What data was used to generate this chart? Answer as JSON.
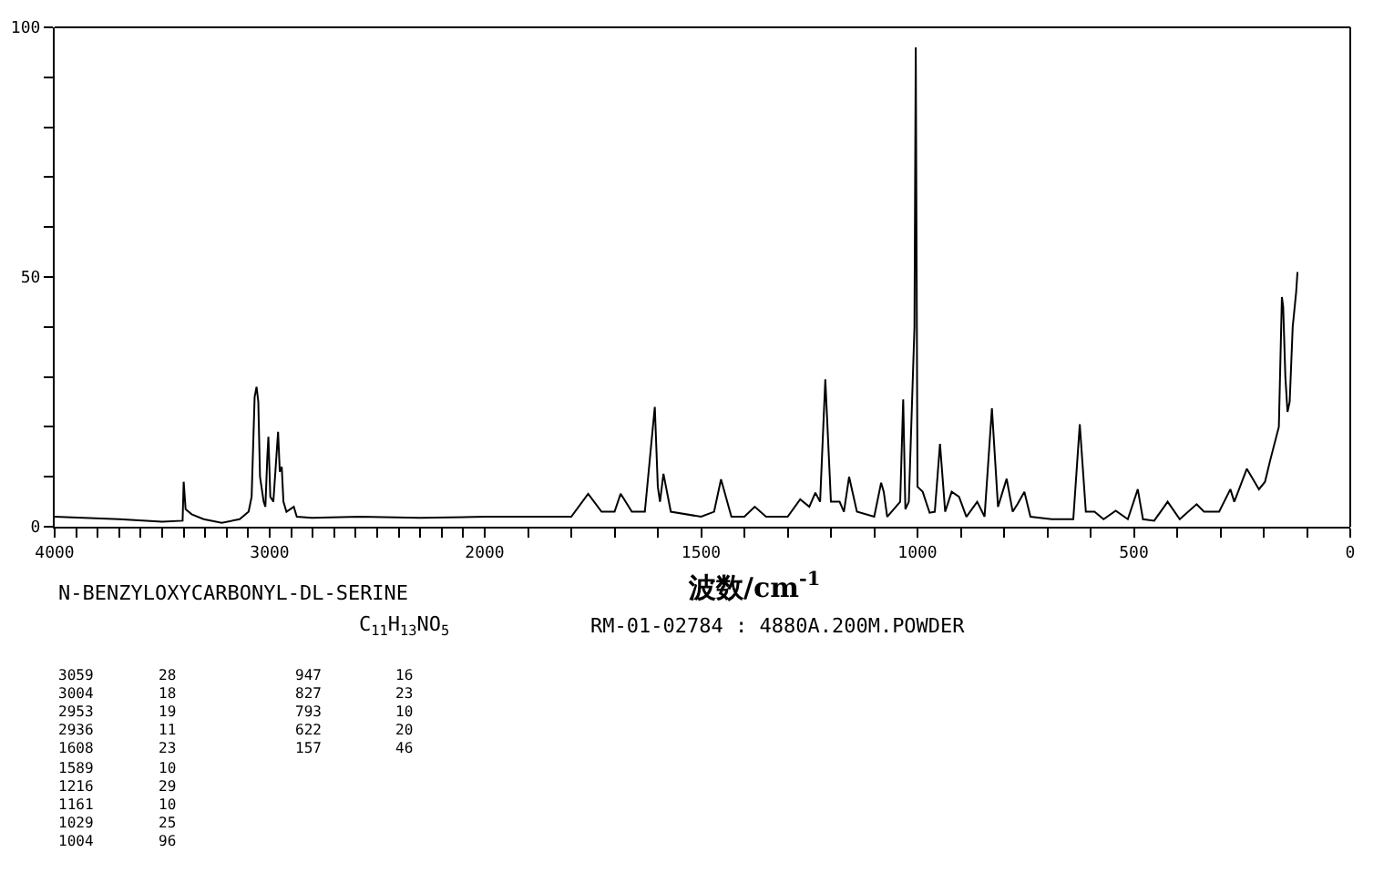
{
  "chart_data": [
    {
      "type": "line",
      "x": [
        4000,
        3700,
        3500,
        3405,
        3400,
        3391,
        3363,
        3307,
        3223,
        3140,
        3098,
        3084,
        3070,
        3061,
        3053,
        3045,
        3028,
        3020,
        3011,
        3006,
        2997,
        2983,
        2972,
        2961,
        2953,
        2944,
        2936,
        2922,
        2888,
        2874,
        2804,
        2581,
        2302,
        2000
      ],
      "series": [
        {
          "color": "#000000",
          "values": [
            2,
            1.5,
            1,
            1.2,
            9,
            3.5,
            2.5,
            1.5,
            0.8,
            1.5,
            3,
            6,
            26,
            28,
            25,
            10,
            5,
            4,
            14,
            18,
            6,
            5,
            12,
            19,
            11,
            12,
            5,
            3,
            4,
            2,
            1.8,
            2,
            1.8,
            2
          ]
        }
      ],
      "xlim": [
        4000,
        2000
      ],
      "xticks": [
        4000,
        {
          "value": 3900,
          "label": null
        },
        {
          "value": 3800,
          "label": null
        },
        {
          "value": 3700,
          "label": null
        },
        {
          "value": 3600,
          "label": null
        },
        {
          "value": 3500,
          "label": null
        },
        {
          "value": 3400,
          "label": null
        },
        {
          "value": 3300,
          "label": null
        },
        {
          "value": 3200,
          "label": null
        },
        {
          "value": 3100,
          "label": null
        },
        3000,
        {
          "value": 2900,
          "label": null
        },
        {
          "value": 2800,
          "label": null
        },
        {
          "value": 2700,
          "label": null
        },
        {
          "value": 2600,
          "label": null
        },
        {
          "value": 2500,
          "label": null
        },
        {
          "value": 2400,
          "label": null
        },
        {
          "value": 2300,
          "label": null
        },
        {
          "value": 2200,
          "label": null
        },
        {
          "value": 2100,
          "label": null
        }
      ],
      "ylim": [
        0,
        100
      ],
      "yticks": [
        0,
        {
          "value": 10,
          "label": null
        },
        {
          "value": 20,
          "label": null
        },
        {
          "value": 30,
          "label": null
        },
        {
          "value": 40,
          "label": null
        },
        50,
        {
          "value": 60,
          "label": null
        },
        {
          "value": 70,
          "label": null
        },
        {
          "value": 80,
          "label": null
        },
        {
          "value": 90,
          "label": null
        },
        100
      ],
      "marker": "none",
      "line_style": "solid",
      "annotations": [
        "N-BENZYLOXYCARBONYL-DL-SERINE",
        "C$_{11}$H$_{13}$NO$_{5}$",
        "RM-01-02784 : 4880A.200M.POWDER",
        "3059",
        "28",
        "3004",
        "18",
        "2953",
        "19",
        "2936",
        "11",
        "1608",
        "23",
        "1589",
        "10",
        "1216",
        "29",
        "1161",
        "10",
        "1029",
        "25",
        "1004",
        "96",
        "947",
        "16",
        "827",
        "23",
        "793",
        "10",
        "622",
        "20",
        "157",
        "46"
      ]
    },
    {
      "type": "line",
      "xlabel": "波数/cm$^{-1}$",
      "x": [
        2000,
        1900,
        1800,
        1761,
        1730,
        1700,
        1686,
        1660,
        1630,
        1607,
        1600,
        1595,
        1587,
        1570,
        1500,
        1470,
        1454,
        1430,
        1400,
        1376,
        1350,
        1300,
        1271,
        1250,
        1236,
        1225,
        1213,
        1200,
        1180,
        1170,
        1158,
        1140,
        1100,
        1084,
        1078,
        1070,
        1040,
        1033,
        1028,
        1020,
        1007,
        1004,
        1000,
        988,
        972,
        960,
        948,
        936,
        921,
        904,
        887,
        862,
        845,
        828,
        814,
        794,
        780,
        769,
        753,
        739,
        690,
        640,
        625,
        611,
        591,
        570,
        542,
        514,
        491,
        479,
        453,
        422,
        394,
        355,
        338,
        303,
        277,
        268,
        239,
        228,
        211,
        197,
        185,
        165,
        158,
        155,
        150,
        145,
        140,
        133,
        125,
        122
      ],
      "series": [
        {
          "color": "#000000",
          "values": [
            2,
            2,
            2,
            6.6,
            3,
            3,
            6.6,
            3,
            3,
            24,
            8,
            5,
            10.6,
            3,
            2,
            3,
            9.5,
            2,
            2,
            4,
            2,
            2,
            5.5,
            4,
            6.8,
            5,
            29.5,
            5,
            5,
            3,
            10,
            3,
            2,
            8.8,
            7,
            2,
            5,
            25.5,
            3.5,
            5,
            40,
            96,
            8,
            7,
            2.8,
            3,
            16.6,
            3,
            7,
            6,
            2,
            5,
            2,
            23.7,
            4,
            9.6,
            3,
            4.5,
            7,
            2,
            1.5,
            1.5,
            20.5,
            3,
            3,
            1.5,
            3.2,
            1.5,
            7.5,
            1.5,
            1.2,
            5,
            1.5,
            4.5,
            3,
            3,
            7.5,
            5,
            11.6,
            10,
            7.5,
            9,
            13.3,
            20,
            46,
            44,
            30,
            23,
            25,
            40,
            47,
            51
          ]
        }
      ],
      "xlim": [
        2000,
        0
      ],
      "xticks": [
        2000,
        {
          "value": 1900,
          "label": null
        },
        {
          "value": 1800,
          "label": null
        },
        {
          "value": 1700,
          "label": null
        },
        {
          "value": 1600,
          "label": null
        },
        1500,
        {
          "value": 1400,
          "label": null
        },
        {
          "value": 1300,
          "label": null
        },
        {
          "value": 1200,
          "label": null
        },
        {
          "value": 1100,
          "label": null
        },
        1000,
        {
          "value": 900,
          "label": null
        },
        {
          "value": 800,
          "label": null
        },
        {
          "value": 700,
          "label": null
        },
        {
          "value": 600,
          "label": null
        },
        500,
        {
          "value": 400,
          "label": null
        },
        {
          "value": 300,
          "label": null
        },
        {
          "value": 200,
          "label": null
        },
        {
          "value": 100,
          "label": null
        },
        0
      ],
      "ylim": [
        0,
        100
      ],
      "tick_labels": "x",
      "marker": "none",
      "line_style": "solid"
    }
  ]
}
